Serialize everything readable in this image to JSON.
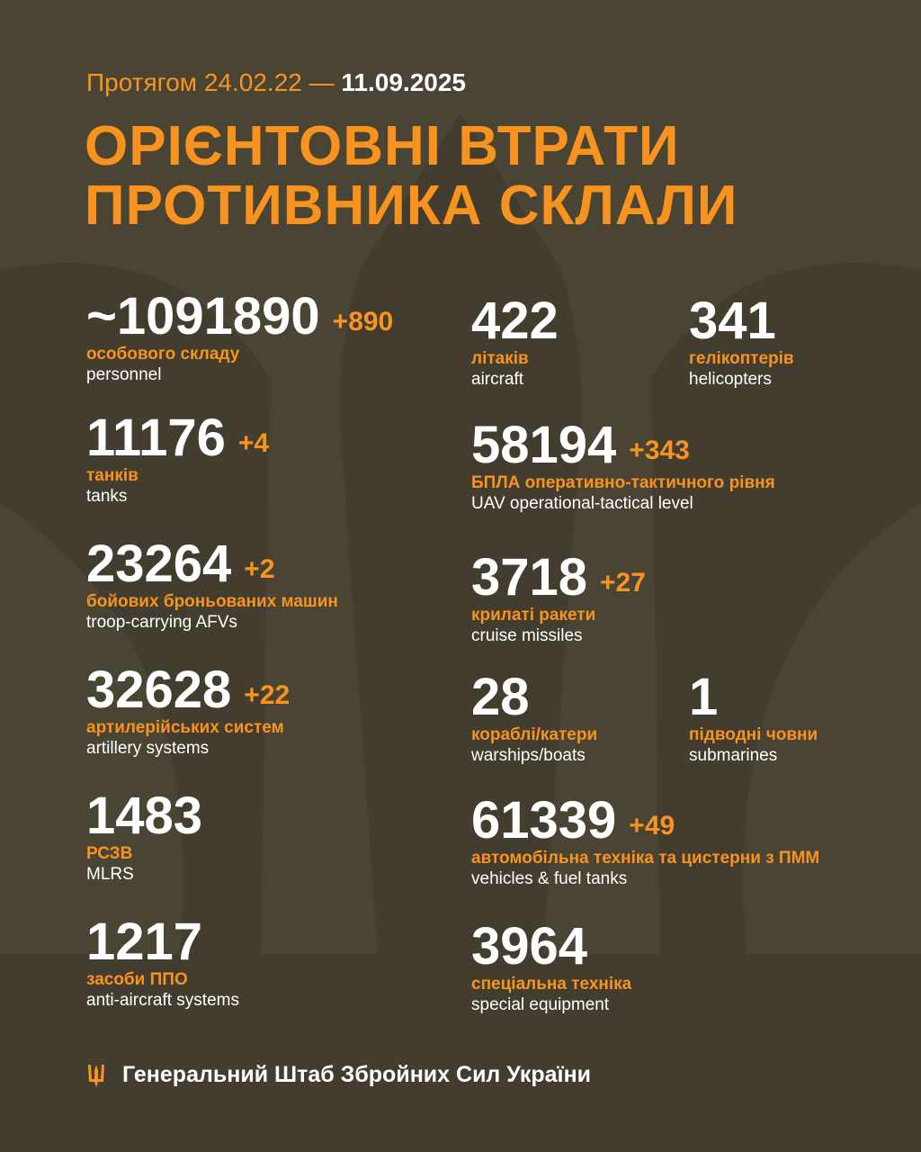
{
  "header": {
    "period_prefix": "Протягом 24.02.22 —",
    "period_end": "11.09.2025",
    "title_line1": "ОРІЄНТОВНІ ВТРАТИ",
    "title_line2": "ПРОТИВНИКА СКЛАЛИ"
  },
  "left": [
    {
      "value": "~1091890",
      "increment": "+890",
      "label_ua": "особового складу",
      "label_en": "personnel"
    },
    {
      "value": "11176",
      "increment": "+4",
      "label_ua": "танків",
      "label_en": "tanks"
    },
    {
      "value": "23264",
      "increment": "+2",
      "label_ua": "бойових броньованих машин",
      "label_en": "troop-carrying AFVs"
    },
    {
      "value": "32628",
      "increment": "+22",
      "label_ua": "артилерійських систем",
      "label_en": "artillery systems"
    },
    {
      "value": "1483",
      "increment": "",
      "label_ua": "РСЗВ",
      "label_en": "MLRS"
    },
    {
      "value": "1217",
      "increment": "",
      "label_ua": "засоби ППО",
      "label_en": "anti-aircraft systems"
    }
  ],
  "right": [
    {
      "value": "422",
      "increment": "",
      "label_ua": "літаків",
      "label_en": "aircraft"
    },
    {
      "value": "341",
      "increment": "",
      "label_ua": "гелікоптерів",
      "label_en": "helicopters"
    },
    {
      "value": "58194",
      "increment": "+343",
      "label_ua": "БПЛА оперативно-тактичного рівня",
      "label_en": "UAV operational-tactical level"
    },
    {
      "value": "3718",
      "increment": "+27",
      "label_ua": "крилаті ракети",
      "label_en": "cruise missiles"
    },
    {
      "value": "28",
      "increment": "",
      "label_ua": "кораблі/катери",
      "label_en": "warships/boats"
    },
    {
      "value": "1",
      "increment": "",
      "label_ua": "підводні човни",
      "label_en": "submarines"
    },
    {
      "value": "61339",
      "increment": "+49",
      "label_ua": "автомобільна техніка та цистерни з ПММ",
      "label_en": "vehicles & fuel tanks"
    },
    {
      "value": "3964",
      "increment": "",
      "label_ua": "спеціальна техніка",
      "label_en": "special equipment"
    }
  ],
  "footer": {
    "text": "Генеральний Штаб Збройних Сил України",
    "icon": "trident-icon"
  },
  "colors": {
    "background": "#4a4434",
    "accent": "#f7931e",
    "text": "#ffffff"
  }
}
